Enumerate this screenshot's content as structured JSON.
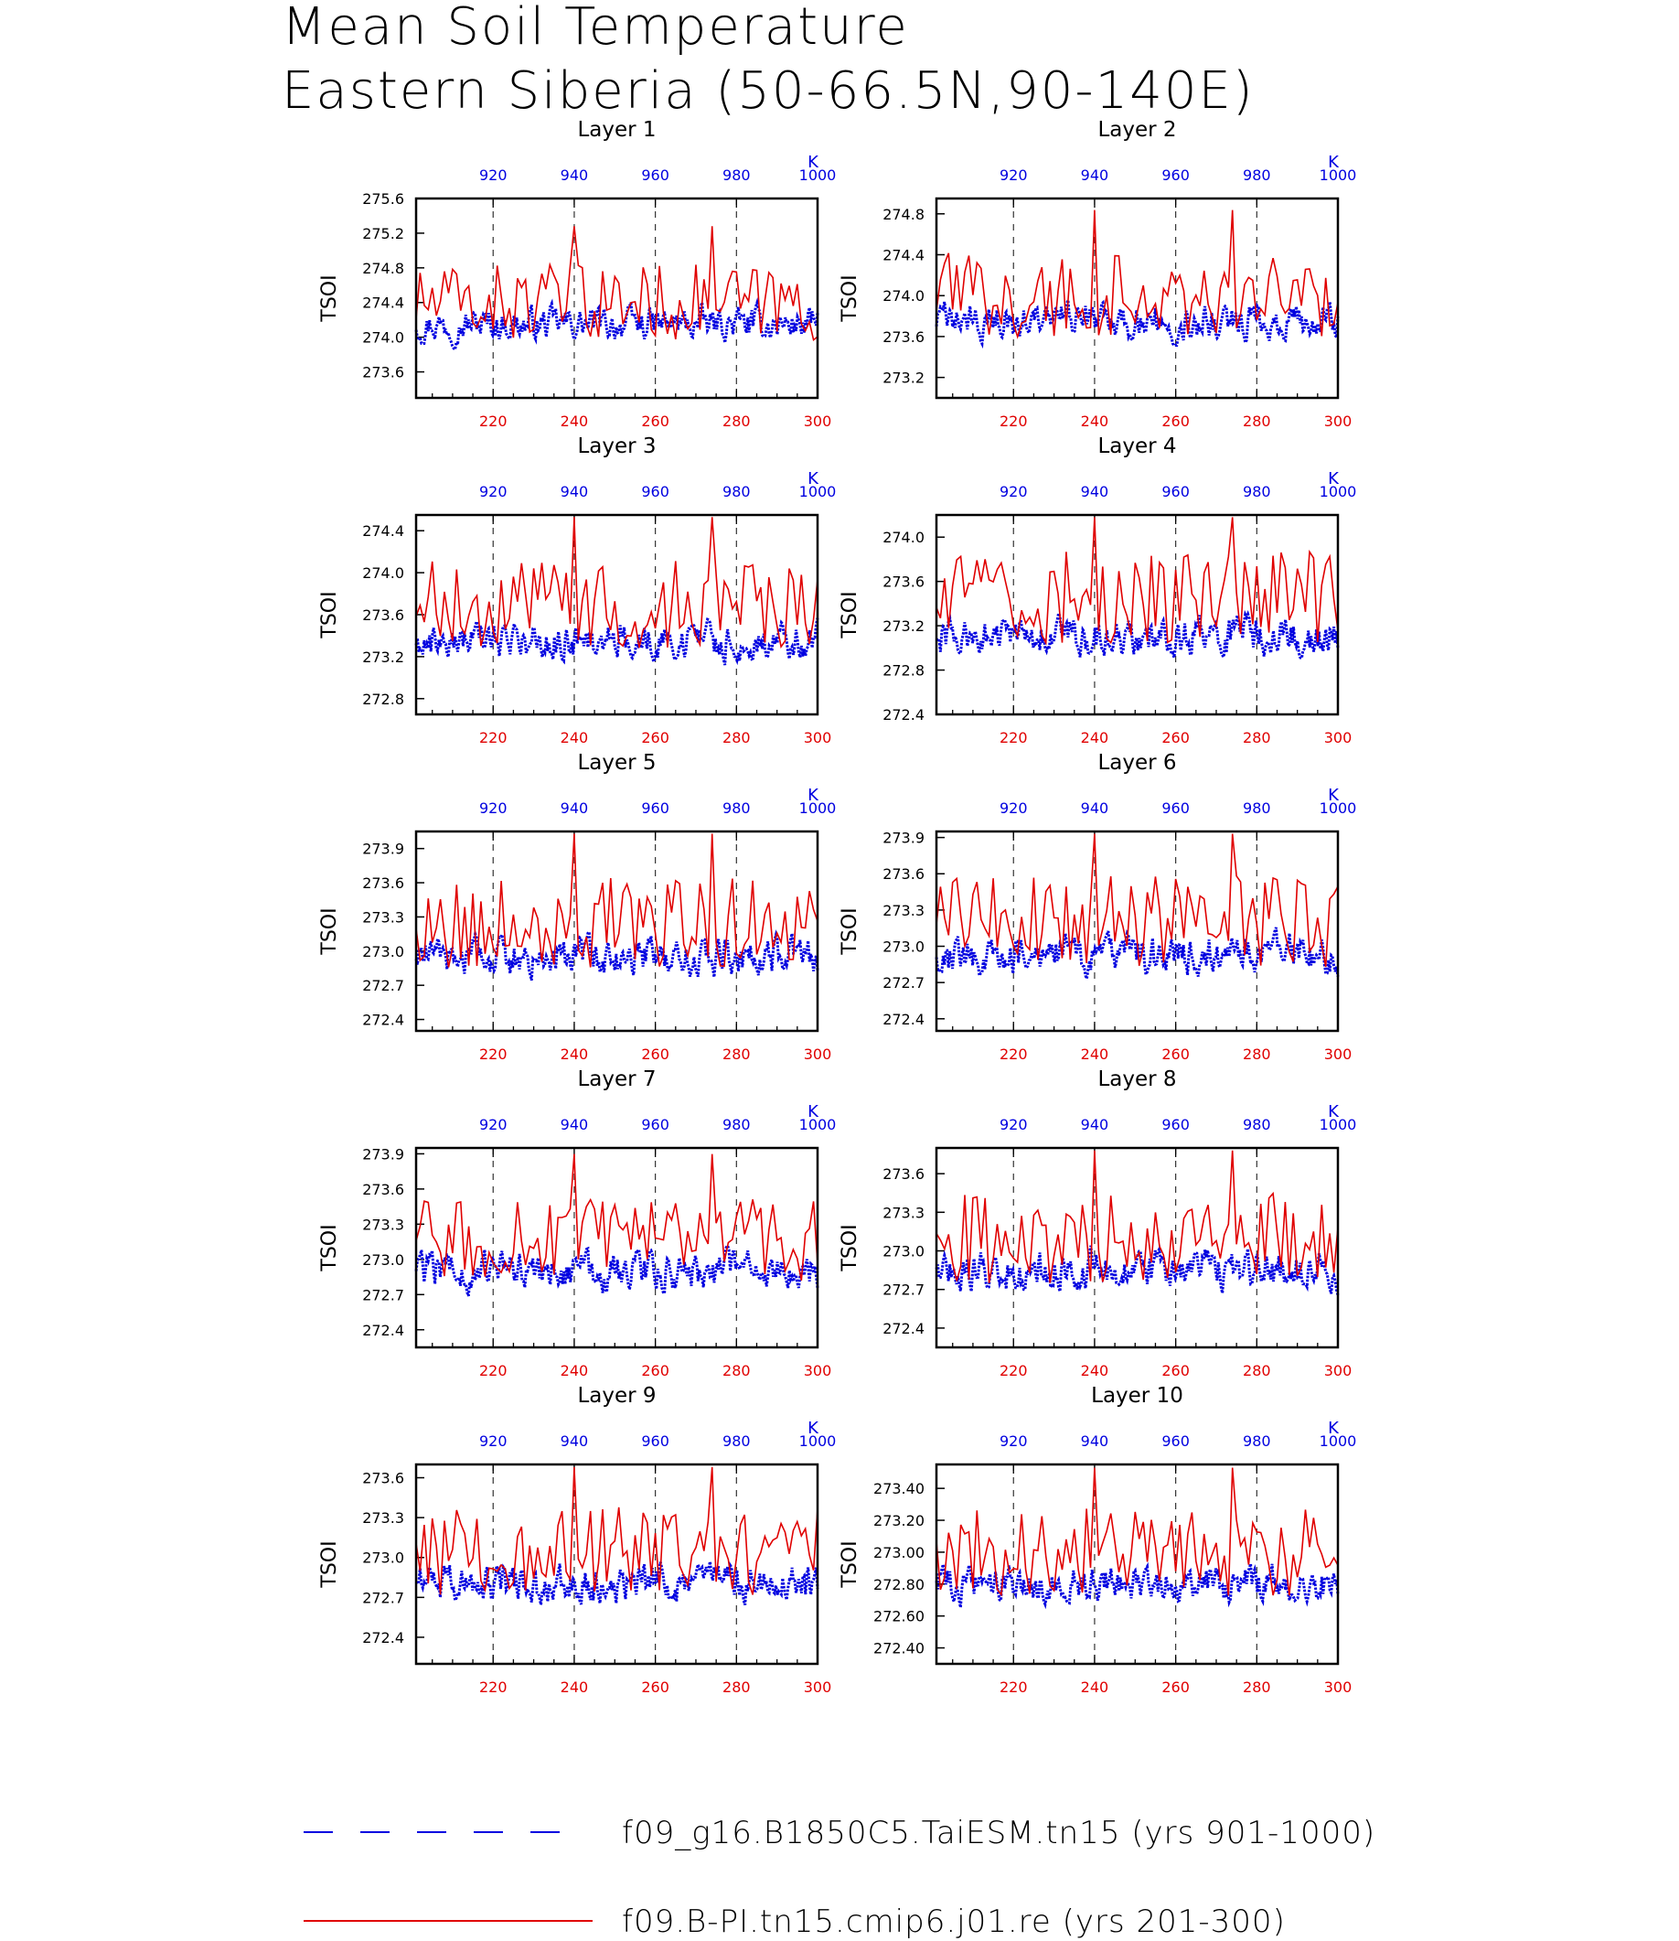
{
  "title": {
    "line1": "Mean Soil Temperature",
    "line2": "Eastern Siberia (50-66.5N,90-140E)"
  },
  "colors": {
    "model_a": "#0000e0",
    "model_b": "#e00000",
    "axis": "#000000"
  },
  "legend": [
    {
      "label": "f09_g16.B1850C5.TaiESM.tn15 (yrs 901-1000)",
      "style": "dashed",
      "color": "#0000e0"
    },
    {
      "label": "f09.B-PI.tn15.cmip6.j01.re (yrs 201-300)",
      "style": "solid",
      "color": "#e00000"
    }
  ],
  "chart_data": [
    {
      "type": "line",
      "title": "Layer 1",
      "ylabel": "TSOI",
      "ylim": [
        273.3,
        275.6
      ],
      "yticks": [
        "273.6",
        "274.0",
        "274.4",
        "274.8",
        "275.2",
        "275.6"
      ],
      "x_bottom": {
        "range": [
          201,
          300
        ],
        "ticks": [
          "220",
          "240",
          "260",
          "280",
          "300"
        ]
      },
      "x_top": {
        "range": [
          901,
          1000
        ],
        "ticks": [
          "920",
          "940",
          "960",
          "980",
          "1000"
        ],
        "unit": "K"
      },
      "series": [
        {
          "name": "f09_g16.B1850C5.TaiESM.tn15 (yrs 901-1000)",
          "base": 274.15,
          "amp": 0.32
        },
        {
          "name": "f09.B-PI.tn15.cmip6.j01.re (yrs 201-300)",
          "base": 274.4,
          "amp": 0.4
        }
      ]
    },
    {
      "type": "line",
      "title": "Layer 2",
      "ylabel": "TSOI",
      "ylim": [
        273.0,
        274.95
      ],
      "yticks": [
        "273.2",
        "273.6",
        "274.0",
        "274.4",
        "274.8"
      ],
      "x_bottom": {
        "range": [
          201,
          300
        ],
        "ticks": [
          "220",
          "240",
          "260",
          "280",
          "300"
        ]
      },
      "x_top": {
        "range": [
          901,
          1000
        ],
        "ticks": [
          "920",
          "940",
          "960",
          "980",
          "1000"
        ],
        "unit": "K"
      },
      "series": [
        {
          "name": "f09_g16.B1850C5.TaiESM.tn15 (yrs 901-1000)",
          "base": 273.75,
          "amp": 0.3
        },
        {
          "name": "f09.B-PI.tn15.cmip6.j01.re (yrs 201-300)",
          "base": 274.0,
          "amp": 0.38
        }
      ]
    },
    {
      "type": "line",
      "title": "Layer 3",
      "ylabel": "TSOI",
      "ylim": [
        272.65,
        274.55
      ],
      "yticks": [
        "272.8",
        "273.2",
        "273.6",
        "274.0",
        "274.4"
      ],
      "x_bottom": {
        "range": [
          201,
          300
        ],
        "ticks": [
          "220",
          "240",
          "260",
          "280",
          "300"
        ]
      },
      "x_top": {
        "range": [
          901,
          1000
        ],
        "ticks": [
          "920",
          "940",
          "960",
          "980",
          "1000"
        ],
        "unit": "K"
      },
      "series": [
        {
          "name": "f09_g16.B1850C5.TaiESM.tn15 (yrs 901-1000)",
          "base": 273.35,
          "amp": 0.3
        },
        {
          "name": "f09.B-PI.tn15.cmip6.j01.re (yrs 201-300)",
          "base": 273.7,
          "amp": 0.38
        }
      ]
    },
    {
      "type": "line",
      "title": "Layer 4",
      "ylabel": "TSOI",
      "ylim": [
        272.4,
        274.2
      ],
      "yticks": [
        "272.4",
        "272.8",
        "273.2",
        "273.6",
        "274.0"
      ],
      "x_bottom": {
        "range": [
          201,
          300
        ],
        "ticks": [
          "220",
          "240",
          "260",
          "280",
          "300"
        ]
      },
      "x_top": {
        "range": [
          901,
          1000
        ],
        "ticks": [
          "920",
          "940",
          "960",
          "980",
          "1000"
        ],
        "unit": "K"
      },
      "series": [
        {
          "name": "f09_g16.B1850C5.TaiESM.tn15 (yrs 901-1000)",
          "base": 273.1,
          "amp": 0.3
        },
        {
          "name": "f09.B-PI.tn15.cmip6.j01.re (yrs 201-300)",
          "base": 273.45,
          "amp": 0.38
        }
      ]
    },
    {
      "type": "line",
      "title": "Layer 5",
      "ylabel": "TSOI",
      "ylim": [
        272.3,
        274.05
      ],
      "yticks": [
        "272.4",
        "272.7",
        "273.0",
        "273.3",
        "273.6",
        "273.9"
      ],
      "x_bottom": {
        "range": [
          201,
          300
        ],
        "ticks": [
          "220",
          "240",
          "260",
          "280",
          "300"
        ]
      },
      "x_top": {
        "range": [
          901,
          1000
        ],
        "ticks": [
          "920",
          "940",
          "960",
          "980",
          "1000"
        ],
        "unit": "K"
      },
      "series": [
        {
          "name": "f09_g16.B1850C5.TaiESM.tn15 (yrs 901-1000)",
          "base": 272.95,
          "amp": 0.28
        },
        {
          "name": "f09.B-PI.tn15.cmip6.j01.re (yrs 201-300)",
          "base": 273.25,
          "amp": 0.36
        }
      ]
    },
    {
      "type": "line",
      "title": "Layer 6",
      "ylabel": "TSOI",
      "ylim": [
        272.3,
        273.95
      ],
      "yticks": [
        "272.4",
        "272.7",
        "273.0",
        "273.3",
        "273.6",
        "273.9"
      ],
      "x_bottom": {
        "range": [
          201,
          300
        ],
        "ticks": [
          "220",
          "240",
          "260",
          "280",
          "300"
        ]
      },
      "x_top": {
        "range": [
          901,
          1000
        ],
        "ticks": [
          "920",
          "940",
          "960",
          "980",
          "1000"
        ],
        "unit": "K"
      },
      "series": [
        {
          "name": "f09_g16.B1850C5.TaiESM.tn15 (yrs 901-1000)",
          "base": 272.92,
          "amp": 0.28
        },
        {
          "name": "f09.B-PI.tn15.cmip6.j01.re (yrs 201-300)",
          "base": 273.2,
          "amp": 0.35
        }
      ]
    },
    {
      "type": "line",
      "title": "Layer 7",
      "ylabel": "TSOI",
      "ylim": [
        272.25,
        273.95
      ],
      "yticks": [
        "272.4",
        "272.7",
        "273.0",
        "273.3",
        "273.6",
        "273.9"
      ],
      "x_bottom": {
        "range": [
          201,
          300
        ],
        "ticks": [
          "220",
          "240",
          "260",
          "280",
          "300"
        ]
      },
      "x_top": {
        "range": [
          901,
          1000
        ],
        "ticks": [
          "920",
          "940",
          "960",
          "980",
          "1000"
        ],
        "unit": "K"
      },
      "series": [
        {
          "name": "f09_g16.B1850C5.TaiESM.tn15 (yrs 901-1000)",
          "base": 272.9,
          "amp": 0.28
        },
        {
          "name": "f09.B-PI.tn15.cmip6.j01.re (yrs 201-300)",
          "base": 273.15,
          "amp": 0.34
        }
      ]
    },
    {
      "type": "line",
      "title": "Layer 8",
      "ylabel": "TSOI",
      "ylim": [
        272.25,
        273.8
      ],
      "yticks": [
        "272.4",
        "272.7",
        "273.0",
        "273.3",
        "273.6"
      ],
      "x_bottom": {
        "range": [
          201,
          300
        ],
        "ticks": [
          "220",
          "240",
          "260",
          "280",
          "300"
        ]
      },
      "x_top": {
        "range": [
          901,
          1000
        ],
        "ticks": [
          "920",
          "940",
          "960",
          "980",
          "1000"
        ],
        "unit": "K"
      },
      "series": [
        {
          "name": "f09_g16.B1850C5.TaiESM.tn15 (yrs 901-1000)",
          "base": 272.85,
          "amp": 0.26
        },
        {
          "name": "f09.B-PI.tn15.cmip6.j01.re (yrs 201-300)",
          "base": 273.1,
          "amp": 0.32
        }
      ]
    },
    {
      "type": "line",
      "title": "Layer 9",
      "ylabel": "TSOI",
      "ylim": [
        272.2,
        273.7
      ],
      "yticks": [
        "272.4",
        "272.7",
        "273.0",
        "273.3",
        "273.6"
      ],
      "x_bottom": {
        "range": [
          201,
          300
        ],
        "ticks": [
          "220",
          "240",
          "260",
          "280",
          "300"
        ]
      },
      "x_top": {
        "range": [
          901,
          1000
        ],
        "ticks": [
          "920",
          "940",
          "960",
          "980",
          "1000"
        ],
        "unit": "K"
      },
      "series": [
        {
          "name": "f09_g16.B1850C5.TaiESM.tn15 (yrs 901-1000)",
          "base": 272.8,
          "amp": 0.25
        },
        {
          "name": "f09.B-PI.tn15.cmip6.j01.re (yrs 201-300)",
          "base": 273.05,
          "amp": 0.3
        }
      ]
    },
    {
      "type": "line",
      "title": "Layer 10",
      "ylabel": "TSOI",
      "ylim": [
        272.3,
        273.55
      ],
      "yticks": [
        "272.40",
        "272.60",
        "272.80",
        "273.00",
        "273.20",
        "273.40"
      ],
      "x_bottom": {
        "range": [
          201,
          300
        ],
        "ticks": [
          "220",
          "240",
          "260",
          "280",
          "300"
        ]
      },
      "x_top": {
        "range": [
          901,
          1000
        ],
        "ticks": [
          "920",
          "940",
          "960",
          "980",
          "1000"
        ],
        "unit": "K"
      },
      "series": [
        {
          "name": "f09_g16.B1850C5.TaiESM.tn15 (yrs 901-1000)",
          "base": 272.8,
          "amp": 0.2
        },
        {
          "name": "f09.B-PI.tn15.cmip6.j01.re (yrs 201-300)",
          "base": 273.0,
          "amp": 0.25
        }
      ]
    }
  ]
}
